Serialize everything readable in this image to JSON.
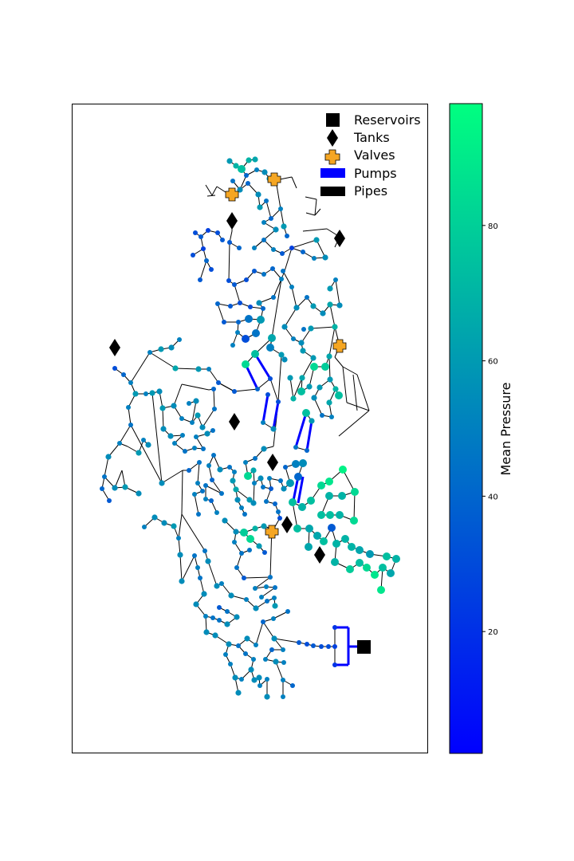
{
  "legend": {
    "reservoirs": "Reservoirs",
    "tanks": "Tanks",
    "valves": "Valves",
    "pumps": "Pumps",
    "pipes": "Pipes"
  },
  "colorbar": {
    "label": "Mean Pressure",
    "ticks": [
      "20",
      "40",
      "60",
      "80"
    ],
    "tick_values": [
      20,
      40,
      60,
      80
    ],
    "range": [
      2,
      98
    ],
    "colormap": "winter",
    "color_low": "#0000ff",
    "color_high": "#00ff80"
  },
  "colors": {
    "pipe": "#000000",
    "pump": "#0000ff",
    "valve": "#f5a623",
    "tank": "#000000",
    "reservoir": "#000000"
  }
}
